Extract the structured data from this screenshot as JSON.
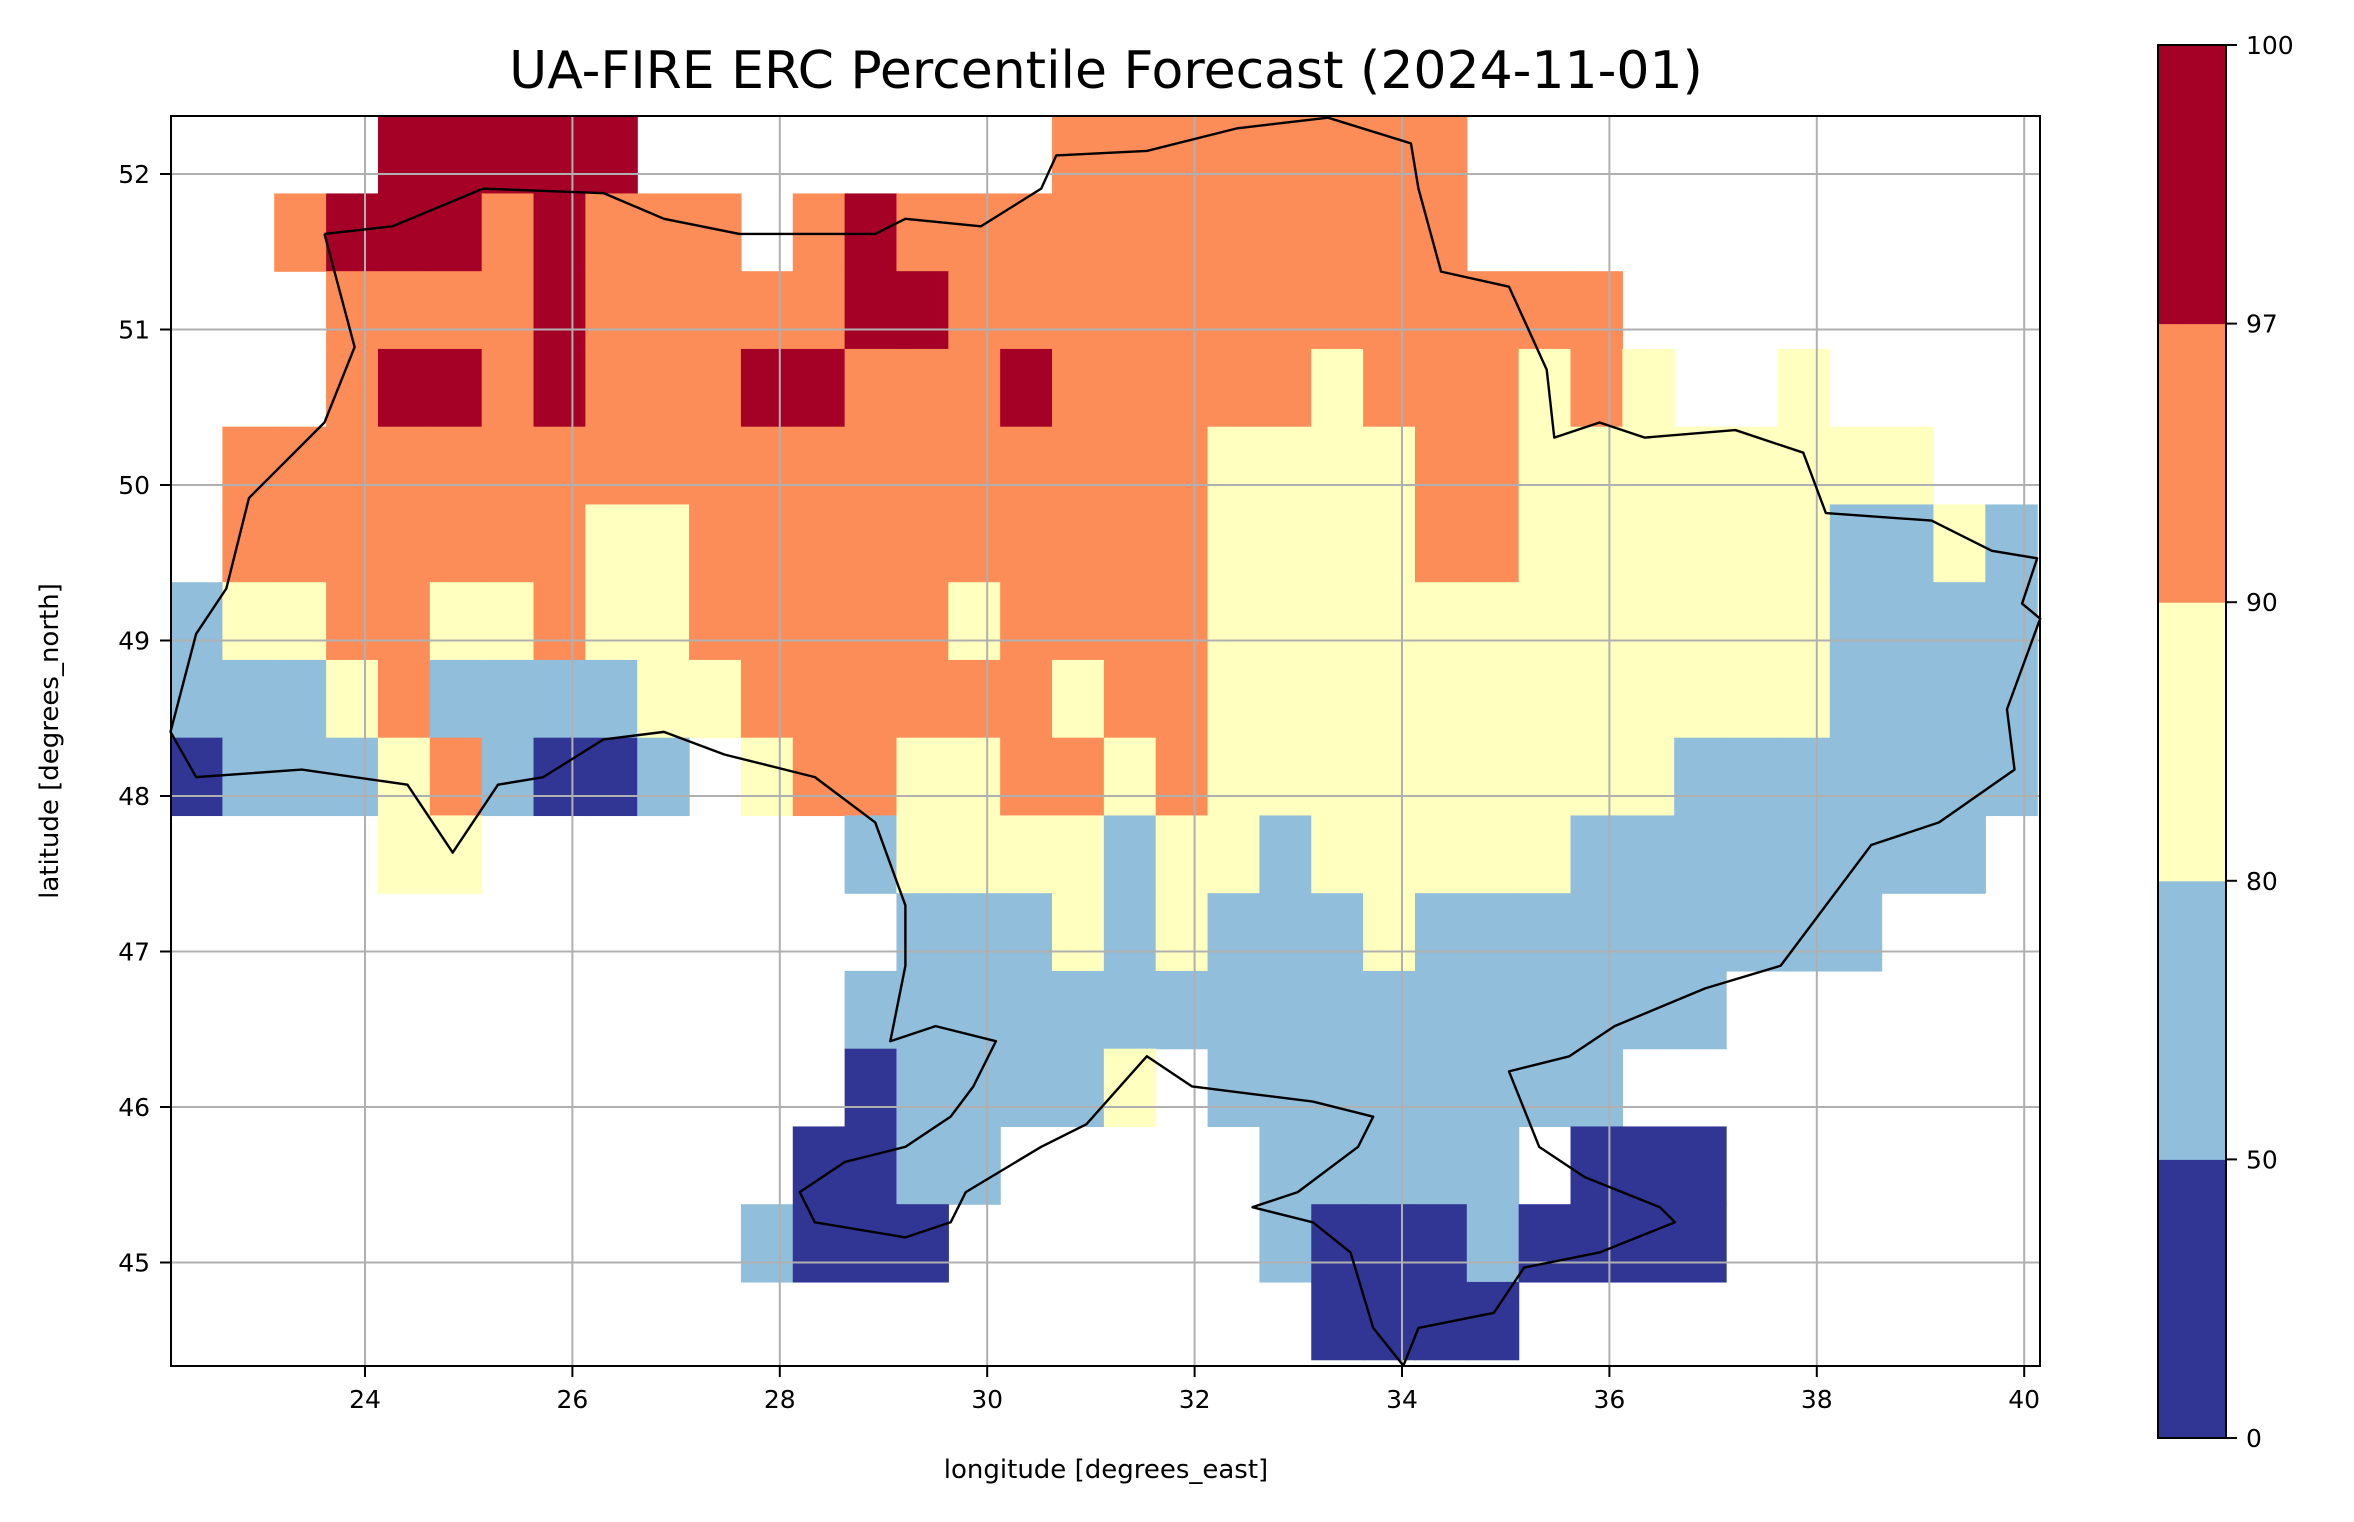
{
  "chart_data": {
    "type": "heatmap",
    "title": "UA-FIRE ERC Percentile Forecast (2024-11-01)",
    "xlabel": "longitude [degrees_east]",
    "ylabel": "latitude [degrees_north]",
    "xlim": [
      22.13,
      40.15
    ],
    "ylim": [
      44.33,
      52.37
    ],
    "xticks": [
      "24",
      "26",
      "28",
      "30",
      "32",
      "34",
      "36",
      "38",
      "40"
    ],
    "yticks": [
      "45",
      "46",
      "47",
      "48",
      "49",
      "50",
      "51",
      "52"
    ],
    "grid": true,
    "grid_resolution_deg": 0.5,
    "grid_origin": {
      "lon_west": 22.125,
      "lat_north": 52.375
    },
    "category_key": {
      "d": "0-50",
      "b": "50-80",
      "y": "80-90",
      "o": "90-97",
      "r": "97-100",
      ".": "no data"
    },
    "rows": [
      "....rrrrr........oooooooo...........",
      "..orrrorooo.orooooooooooo...........",
      "...oooorooooorrooooooooooooo........",
      "...orrorooorroooroooooyoooyoy..y.....",
      ".oooooooooooooooooooyyyyooyyyyyyyy..",
      ".oooooooyyooooooooooyyyyooyyyyyybbyb",
      "byyooyyoyyoooooyooooyyyyyyyyyyyybbbb",
      "bbbyobbbbyyooooooyooyyyyyyyyyyyybbbb",
      "dbbbyobddb.yooyyooyoyyyyyyyyybbbbbbb",
      "....yy.......byyyybyybyyyyybbbbbbbb.",
      "..............bbbybybbbybbbbbbbbb...",
      ".............bbbbbbbbbbbbbbbbb......",
      ".............dbbbby.bbbbbbbb........",
      "............ddbb.....bbbbb.ddd......",
      "...........bddd......bdddbdddd......",
      "......................dddd.........."
    ],
    "colorbar": {
      "boundaries": [
        "0",
        "50",
        "80",
        "90",
        "97",
        "100"
      ],
      "colors": [
        "#313695",
        "#91bfdb",
        "#ffffbf",
        "#fc8d59",
        "#a50026"
      ]
    }
  }
}
